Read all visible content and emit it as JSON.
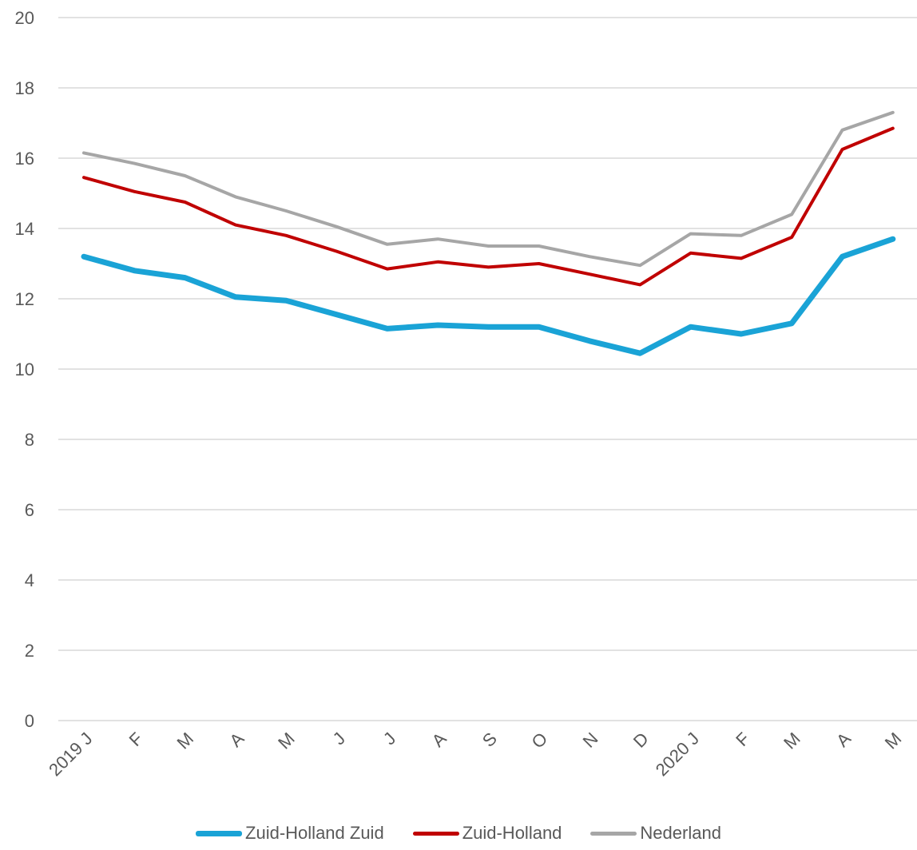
{
  "chart_data": {
    "type": "line",
    "categories": [
      "2019 J",
      "F",
      "M",
      "A",
      "M",
      "J",
      "J",
      "A",
      "S",
      "O",
      "N",
      "D",
      "2020 J",
      "F",
      "M",
      "A",
      "M"
    ],
    "series": [
      {
        "name": "Zuid-Holland Zuid",
        "color": "#1AA3D6",
        "values": [
          13.2,
          12.8,
          12.6,
          12.05,
          11.95,
          11.55,
          11.15,
          11.25,
          11.2,
          11.2,
          10.8,
          10.45,
          11.2,
          11.0,
          11.3,
          13.2,
          13.7
        ]
      },
      {
        "name": "Zuid-Holland",
        "color": "#C00000",
        "values": [
          15.45,
          15.05,
          14.75,
          14.1,
          13.8,
          13.35,
          12.85,
          13.05,
          12.9,
          13.0,
          12.7,
          12.4,
          13.3,
          13.15,
          13.75,
          16.25,
          16.85
        ]
      },
      {
        "name": "Nederland",
        "color": "#A6A6A6",
        "values": [
          16.15,
          15.85,
          15.5,
          14.9,
          14.5,
          14.05,
          13.55,
          13.7,
          13.5,
          13.5,
          13.2,
          12.95,
          13.85,
          13.8,
          14.4,
          16.8,
          17.3
        ]
      }
    ],
    "y_ticks": [
      "0",
      "2",
      "4",
      "6",
      "8",
      "10",
      "12",
      "14",
      "16",
      "18",
      "20"
    ],
    "ylim": [
      0,
      20
    ],
    "grid": true,
    "legend_position": "bottom"
  }
}
